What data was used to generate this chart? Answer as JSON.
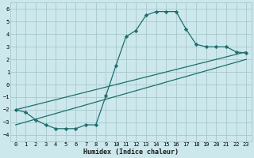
{
  "xlabel": "Humidex (Indice chaleur)",
  "bg_color": "#cce8ec",
  "grid_color": "#a8c8cc",
  "line_color": "#1e6e6e",
  "xlim": [
    -0.5,
    23.5
  ],
  "ylim": [
    -4.5,
    6.5
  ],
  "xticks": [
    0,
    1,
    2,
    3,
    4,
    5,
    6,
    7,
    8,
    9,
    10,
    11,
    12,
    13,
    14,
    15,
    16,
    17,
    18,
    19,
    20,
    21,
    22,
    23
  ],
  "yticks": [
    -4,
    -3,
    -2,
    -1,
    0,
    1,
    2,
    3,
    4,
    5,
    6
  ],
  "line1_x": [
    0,
    1,
    2,
    3,
    4,
    5,
    6,
    7,
    8,
    9,
    10,
    11,
    12,
    13,
    14,
    15,
    16,
    17,
    18,
    19,
    20,
    21,
    22,
    23
  ],
  "line1_y": [
    -2.0,
    -2.2,
    -2.8,
    -3.2,
    -3.5,
    -3.5,
    -3.5,
    -3.2,
    -3.2,
    -0.9,
    1.5,
    3.8,
    4.3,
    5.5,
    5.8,
    5.8,
    5.8,
    4.4,
    3.2,
    3.0,
    3.0,
    3.0,
    2.6,
    2.5
  ],
  "line2_x": [
    0,
    23
  ],
  "line2_y": [
    -2.0,
    2.6
  ],
  "line3_x": [
    0,
    23
  ],
  "line3_y": [
    -3.2,
    2.0
  ],
  "marker": "D",
  "marker_size": 2.2,
  "line_width": 0.9,
  "tick_fontsize": 5.0,
  "xlabel_fontsize": 6.0
}
